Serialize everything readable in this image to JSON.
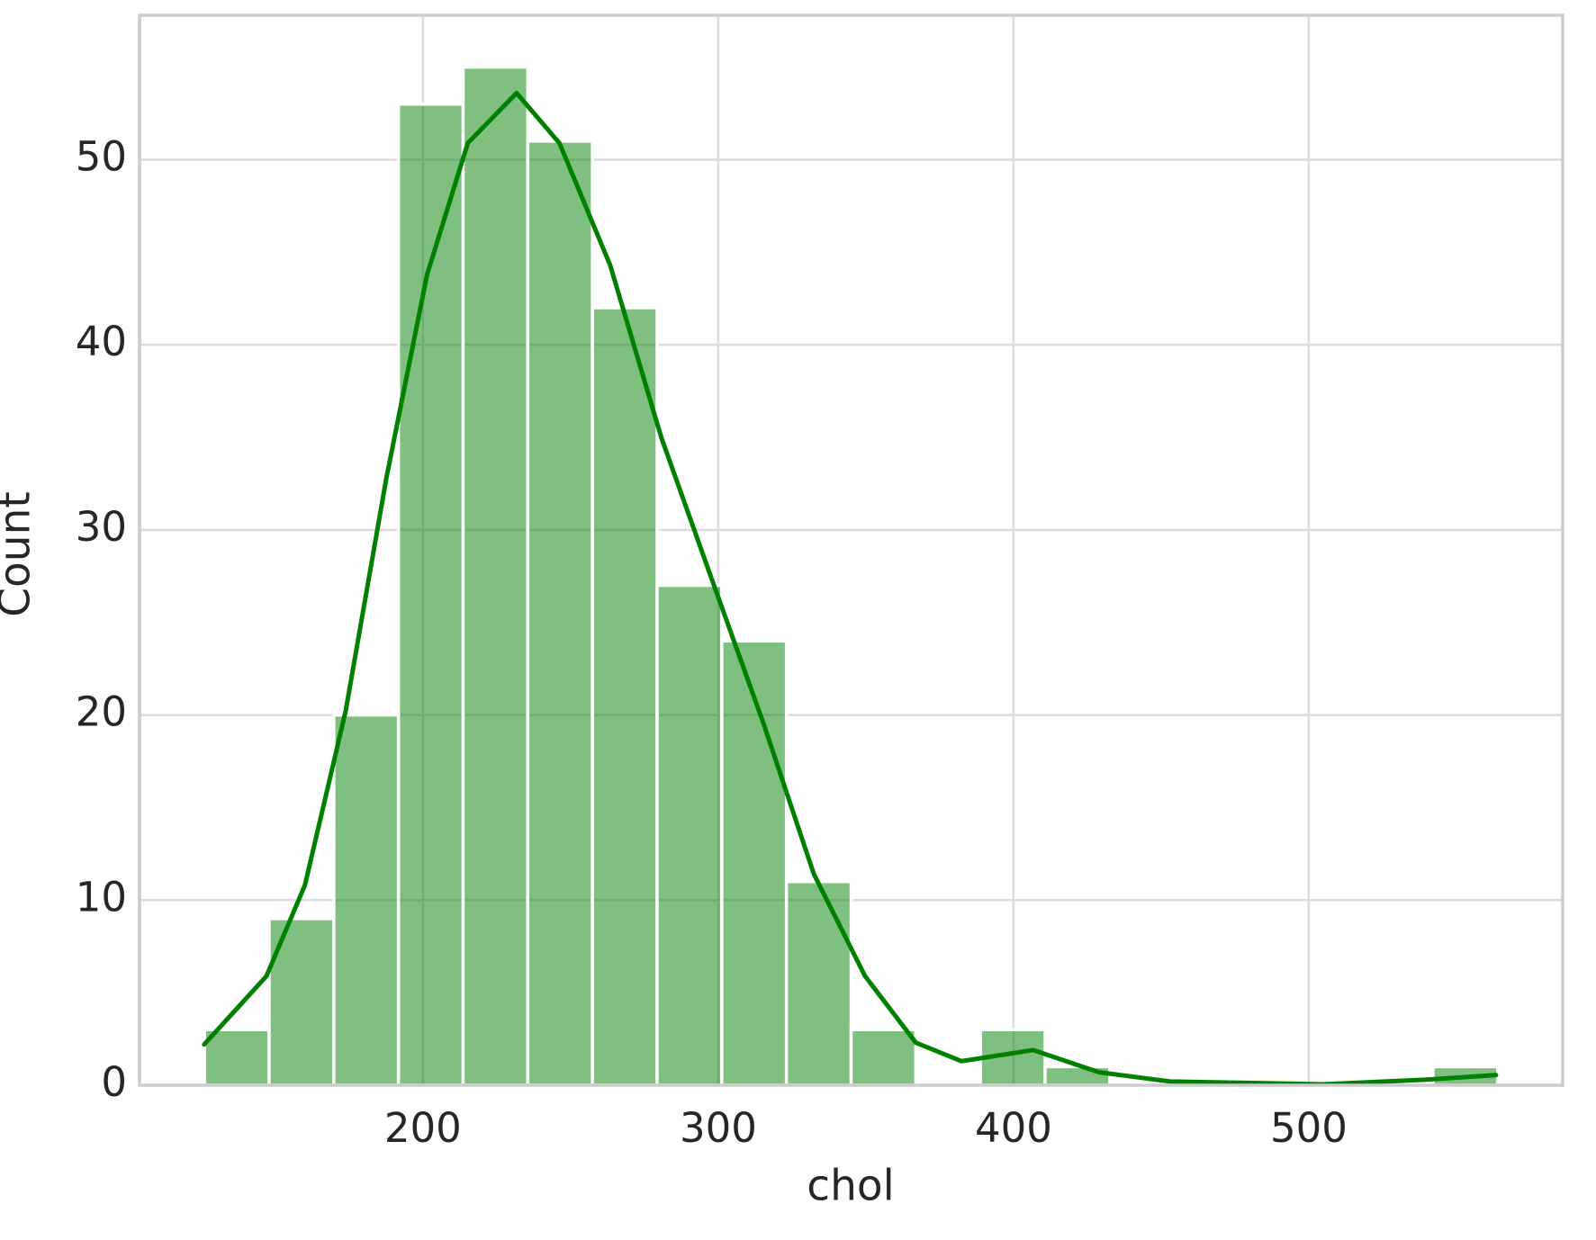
{
  "chart_data": {
    "type": "histogram",
    "x_label": "chol",
    "y_label": "Count",
    "bins": [
      126,
      147.9,
      169.8,
      191.7,
      213.6,
      235.5,
      257.4,
      279.3,
      301.2,
      323.1,
      345,
      366.9,
      388.8,
      410.7,
      432.6,
      454.5,
      476.4,
      498.3,
      520.2,
      542.1,
      564
    ],
    "values": [
      3,
      9,
      20,
      53,
      55,
      51,
      42,
      27,
      24,
      11,
      3,
      0,
      3,
      1,
      0,
      0,
      0,
      0,
      0,
      1
    ],
    "color": "#008000",
    "kde": {
      "x": [
        125.9,
        147,
        160,
        173.8,
        187.6,
        201.4,
        215.2,
        231.7,
        246.2,
        263.4,
        280.7,
        297.9,
        315.2,
        332.4,
        349.7,
        366.9,
        382.4,
        406.6,
        429,
        453.1,
        504.8,
        539.3,
        563.4
      ],
      "values": [
        2.2,
        5.9,
        10.8,
        20.2,
        32.8,
        43.8,
        50.9,
        53.6,
        50.9,
        44.3,
        35,
        27.3,
        19.6,
        11.4,
        5.9,
        2.3,
        1.3,
        1.9,
        0.7,
        0.2,
        0.05,
        0.3,
        0.55
      ]
    },
    "xlim": [
      104,
      586
    ],
    "ylim": [
      0,
      57.8
    ],
    "xticks": [
      200,
      300,
      400,
      500
    ],
    "yticks": [
      0,
      10,
      20,
      30,
      40,
      50
    ],
    "grid": true
  }
}
